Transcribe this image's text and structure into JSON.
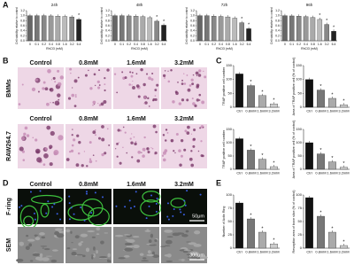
{
  "panel_labels": [
    "A",
    "B",
    "C",
    "D",
    "E"
  ],
  "image_panels": [
    {
      "columns": [
        "Control",
        "0.8mM",
        "1.6mM",
        "3.2mM"
      ],
      "rows": [
        "BMMs",
        "RAW264.7"
      ]
    },
    {
      "columns": [
        "Control",
        "0.8mM",
        "1.6mM",
        "3.2mM"
      ],
      "rows": [
        "F-ring",
        "SEM"
      ],
      "scale_bars": [
        "50μm",
        "300μm"
      ]
    }
  ],
  "chart_data": [
    {
      "type": "bar",
      "title": "24h",
      "x_label": "RhCl3 (mM)",
      "y_label": "Cell viability relative to control",
      "categories": [
        "0",
        "0.1",
        "0.2",
        "0.4",
        "0.8",
        "1.6",
        "3.2",
        "6.4"
      ],
      "values": [
        1.0,
        1.0,
        1.0,
        0.99,
        0.98,
        0.97,
        0.95,
        0.85
      ],
      "significance": [
        null,
        null,
        null,
        null,
        null,
        null,
        null,
        "*"
      ],
      "colors": [
        "#666",
        "#777",
        "#888",
        "#999",
        "#aaa",
        "#bbb",
        "#888",
        "#222"
      ],
      "ylim": [
        0,
        1.2
      ],
      "yticks": [
        {
          "value": 0,
          "label": "0.0"
        },
        {
          "value": 0.2,
          "label": "0.2"
        },
        {
          "value": 0.4,
          "label": "0.4"
        },
        {
          "value": 0.6,
          "label": "0.6"
        },
        {
          "value": 0.8,
          "label": "0.8"
        },
        {
          "value": 1,
          "label": "1.0"
        },
        {
          "value": 1.2,
          "label": "1.2"
        }
      ]
    },
    {
      "type": "bar",
      "title": "48h",
      "x_label": "RhCl3 (mM)",
      "y_label": "Cell viability relative to control",
      "categories": [
        "0",
        "0.1",
        "0.2",
        "0.4",
        "0.8",
        "1.6",
        "3.2",
        "6.4"
      ],
      "values": [
        1.0,
        1.0,
        0.99,
        0.98,
        0.96,
        0.92,
        0.78,
        0.62
      ],
      "significance": [
        null,
        null,
        null,
        null,
        null,
        null,
        "*",
        "*"
      ],
      "colors": [
        "#666",
        "#777",
        "#888",
        "#999",
        "#aaa",
        "#bbb",
        "#888",
        "#222"
      ],
      "ylim": [
        0,
        1.2
      ],
      "yticks": [
        {
          "value": 0,
          "label": "0.0"
        },
        {
          "value": 0.2,
          "label": "0.2"
        },
        {
          "value": 0.4,
          "label": "0.4"
        },
        {
          "value": 0.6,
          "label": "0.6"
        },
        {
          "value": 0.8,
          "label": "0.8"
        },
        {
          "value": 1,
          "label": "1.0"
        },
        {
          "value": 1.2,
          "label": "1.2"
        }
      ]
    },
    {
      "type": "bar",
      "title": "72h",
      "x_label": "RhCl3 (mM)",
      "y_label": "Cell viability relative to control",
      "categories": [
        "0",
        "0.1",
        "0.2",
        "0.4",
        "0.8",
        "1.6",
        "3.2",
        "6.4"
      ],
      "values": [
        1.0,
        1.0,
        0.98,
        0.97,
        0.95,
        0.9,
        0.72,
        0.48
      ],
      "significance": [
        null,
        null,
        null,
        null,
        null,
        null,
        "*",
        "*"
      ],
      "colors": [
        "#666",
        "#777",
        "#888",
        "#999",
        "#aaa",
        "#bbb",
        "#888",
        "#222"
      ],
      "ylim": [
        0,
        1.2
      ],
      "yticks": [
        {
          "value": 0,
          "label": "0.0"
        },
        {
          "value": 0.2,
          "label": "0.2"
        },
        {
          "value": 0.4,
          "label": "0.4"
        },
        {
          "value": 0.6,
          "label": "0.6"
        },
        {
          "value": 0.8,
          "label": "0.8"
        },
        {
          "value": 1,
          "label": "1.0"
        },
        {
          "value": 1.2,
          "label": "1.2"
        }
      ]
    },
    {
      "type": "bar",
      "title": "96h",
      "x_label": "RhCl3 (mM)",
      "y_label": "Cell viability relative to control",
      "categories": [
        "0",
        "0.1",
        "0.2",
        "0.4",
        "0.8",
        "1.6",
        "3.2",
        "6.4"
      ],
      "values": [
        1.0,
        0.99,
        0.98,
        0.96,
        0.93,
        0.85,
        0.65,
        0.38
      ],
      "significance": [
        null,
        null,
        null,
        null,
        null,
        "*",
        "*",
        "*"
      ],
      "colors": [
        "#666",
        "#777",
        "#888",
        "#999",
        "#aaa",
        "#bbb",
        "#888",
        "#222"
      ],
      "ylim": [
        0,
        1.2
      ],
      "yticks": [
        {
          "value": 0,
          "label": "0.0"
        },
        {
          "value": 0.2,
          "label": "0.2"
        },
        {
          "value": 0.4,
          "label": "0.4"
        },
        {
          "value": 0.6,
          "label": "0.6"
        },
        {
          "value": 0.8,
          "label": "0.8"
        },
        {
          "value": 1,
          "label": "1.0"
        },
        {
          "value": 1.2,
          "label": "1.2"
        }
      ]
    },
    {
      "type": "bar",
      "y_label": "TRAP positive cell number",
      "categories": [
        "Ctrl",
        "0.8mM",
        "1.6mM",
        "3.2mM"
      ],
      "values": [
        120,
        78,
        42,
        12
      ],
      "significance": [
        null,
        "*",
        "*",
        "*"
      ],
      "colors": [
        "#111",
        "#777",
        "#aaa",
        "#ccc"
      ],
      "ylim": [
        0,
        150
      ],
      "yticks": [
        0,
        50,
        100,
        150
      ]
    },
    {
      "type": "bar",
      "y_label": "Area of TRAP positive cell (% of control)",
      "categories": [
        "Ctrl",
        "0.8mM",
        "1.6mM",
        "3.2mM"
      ],
      "values": [
        100,
        62,
        32,
        9
      ],
      "significance": [
        null,
        "*",
        "*",
        "*"
      ],
      "colors": [
        "#111",
        "#777",
        "#aaa",
        "#ccc"
      ],
      "ylim": [
        0,
        150
      ],
      "yticks": [
        0,
        50,
        100,
        150
      ]
    },
    {
      "type": "bar",
      "y_label": "TRAP positive cell number",
      "categories": [
        "Ctrl",
        "0.8mM",
        "1.6mM",
        "3.2mM"
      ],
      "values": [
        115,
        72,
        38,
        10
      ],
      "significance": [
        null,
        "*",
        "*",
        "*"
      ],
      "colors": [
        "#111",
        "#777",
        "#aaa",
        "#ccc"
      ],
      "ylim": [
        0,
        150
      ],
      "yticks": [
        0,
        50,
        100,
        150
      ]
    },
    {
      "type": "bar",
      "y_label": "Area of TRAP positive cell (% of control)",
      "categories": [
        "Ctrl",
        "0.8mM",
        "1.6mM",
        "3.2mM"
      ],
      "values": [
        100,
        58,
        28,
        8
      ],
      "significance": [
        null,
        "*",
        "*",
        "*"
      ],
      "colors": [
        "#111",
        "#777",
        "#aaa",
        "#ccc"
      ],
      "ylim": [
        0,
        150
      ],
      "yticks": [
        0,
        50,
        100,
        150
      ]
    },
    {
      "type": "bar",
      "y_label": "Number of Actin Ring",
      "categories": [
        "Ctrl",
        "0.8mM",
        "1.6mM",
        "3.2mM"
      ],
      "values": [
        85,
        55,
        30,
        8
      ],
      "significance": [
        null,
        "*",
        "*",
        "*"
      ],
      "colors": [
        "#111",
        "#777",
        "#aaa",
        "#ccc"
      ],
      "ylim": [
        0,
        100
      ],
      "yticks": [
        0,
        25,
        50,
        75,
        100
      ]
    },
    {
      "type": "bar",
      "y_label": "Resorption area of bone slice (% of control)",
      "categories": [
        "Ctrl",
        "0.8mM",
        "1.6mM",
        "3.2mM"
      ],
      "values": [
        95,
        60,
        30,
        5
      ],
      "significance": [
        null,
        "*",
        "*",
        "*"
      ],
      "colors": [
        "#111",
        "#777",
        "#aaa",
        "#ccc"
      ],
      "ylim": [
        0,
        100
      ],
      "yticks": [
        0,
        25,
        50,
        75,
        100
      ]
    }
  ]
}
